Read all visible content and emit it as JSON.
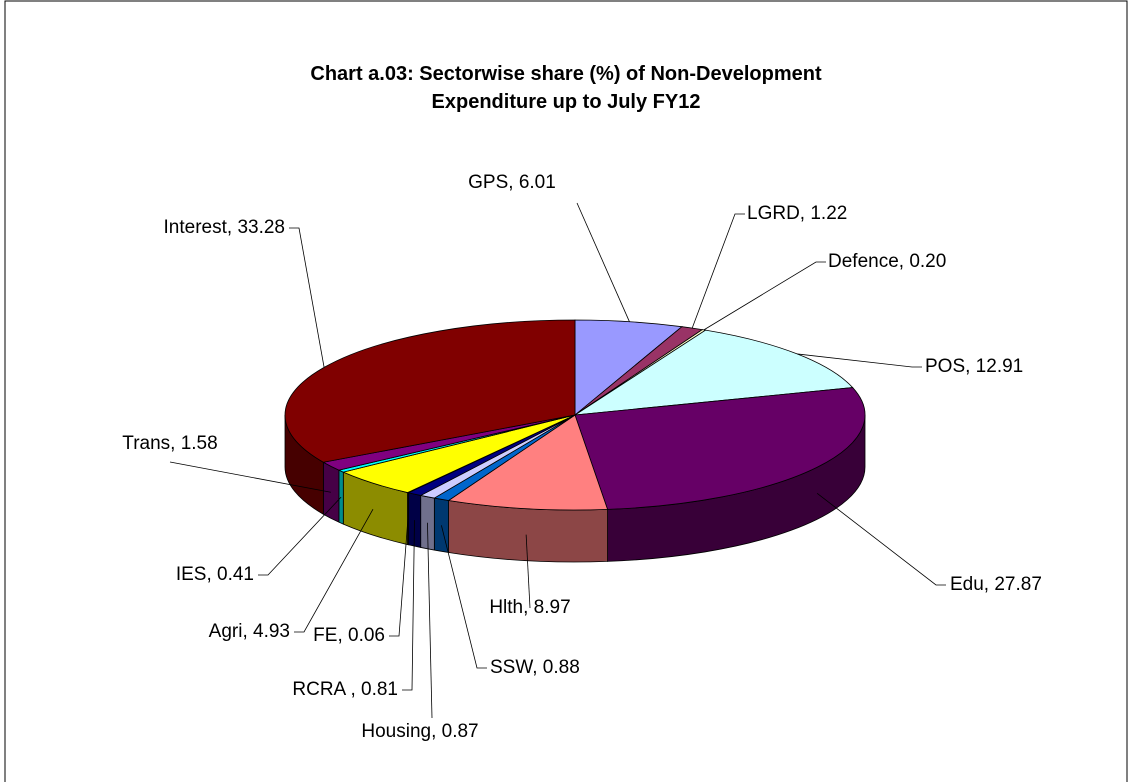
{
  "chart_data": {
    "type": "pie",
    "title": "Chart a.03: Sectorwise share (%) of Non-Development Expenditure up to July FY12",
    "categories": [
      "GPS",
      "LGRD",
      "Defence",
      "POS",
      "Edu",
      "Hlth",
      "SSW",
      "Housing",
      "RCRA ",
      "FE",
      "Agri",
      "IES",
      "Trans",
      "Interest"
    ],
    "values": [
      6.01,
      1.22,
      0.2,
      12.91,
      27.87,
      8.97,
      0.88,
      0.87,
      0.81,
      0.06,
      4.93,
      0.41,
      1.58,
      33.28
    ],
    "value_labels": [
      "GPS, 6.01",
      "LGRD, 1.22",
      "Defence, 0.20",
      "POS, 12.91",
      "Edu, 27.87",
      "Hlth, 8.97",
      "SSW, 0.88",
      "Housing, 0.87",
      "RCRA , 0.81",
      "FE, 0.06",
      "Agri, 4.93",
      "IES, 0.41",
      "Trans, 1.58",
      "Interest, 33.28"
    ],
    "colors": [
      "#9999ff",
      "#993366",
      "#ffffcc",
      "#ccffff",
      "#660066",
      "#ff8080",
      "#0066cc",
      "#ccccff",
      "#000080",
      "#ff00ff",
      "#ffff00",
      "#00ffff",
      "#800080",
      "#800000"
    ]
  }
}
